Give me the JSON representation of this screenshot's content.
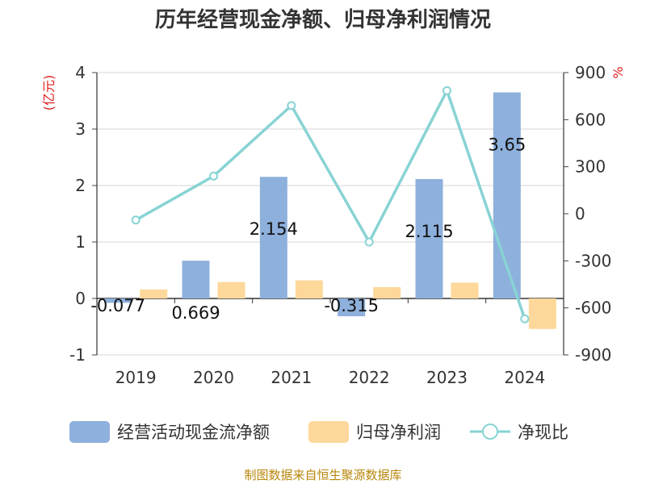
{
  "chart_data": {
    "type": "bar+line",
    "title": "历年经营现金净额、归母净利润情况",
    "categories": [
      "2019",
      "2020",
      "2021",
      "2022",
      "2023",
      "2024"
    ],
    "left_axis": {
      "unit": "(亿元)",
      "ticks": [
        "4",
        "3",
        "2",
        "1",
        "0",
        "-1"
      ],
      "ylim": [
        -1,
        4
      ]
    },
    "right_axis": {
      "unit": "%",
      "ticks": [
        "900",
        "600",
        "300",
        "0",
        "-300",
        "-600",
        "-900"
      ],
      "ylim": [
        -900,
        900
      ]
    },
    "series": [
      {
        "name": "经营活动现金流净额",
        "type": "bar",
        "axis": "left",
        "color": "#8eb0dc",
        "values": [
          -0.077,
          0.669,
          2.154,
          -0.315,
          2.115,
          3.65
        ],
        "labels": [
          "-0.077",
          "0.669",
          "2.154",
          "-0.315",
          "2.115",
          "3.65"
        ]
      },
      {
        "name": "归母净利润",
        "type": "bar",
        "axis": "left",
        "color": "#fdd89a",
        "values": [
          0.16,
          0.29,
          0.32,
          0.2,
          0.28,
          -0.54
        ]
      },
      {
        "name": "净现比",
        "type": "line",
        "axis": "right",
        "color": "#88d3d4",
        "values": [
          -40,
          240,
          690,
          -180,
          785,
          -670
        ]
      }
    ],
    "grid": true,
    "legend": "bottom"
  },
  "footer": {
    "source": "制图数据来自恒生聚源数据库"
  }
}
